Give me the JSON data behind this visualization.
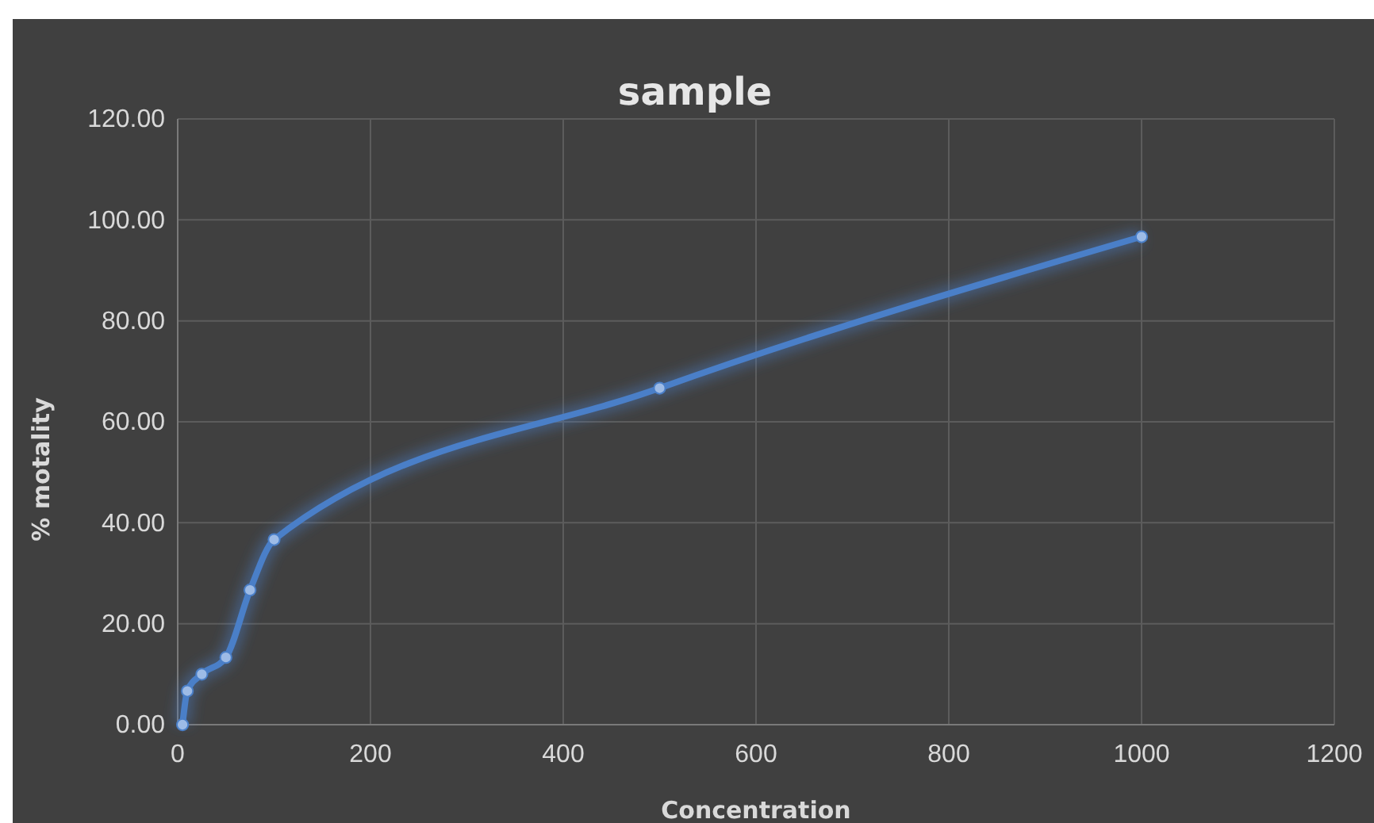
{
  "chart_data": {
    "type": "line",
    "title": "sample",
    "xlabel": "Concentration",
    "ylabel": "% motality",
    "x": [
      5,
      10,
      25,
      50,
      75,
      100,
      500,
      1000
    ],
    "series": [
      {
        "color": "#4a7fc8",
        "values": [
          0,
          6.67,
          10,
          13.33,
          26.67,
          36.67,
          66.67,
          96.67
        ]
      }
    ],
    "xlim": [
      0,
      1200
    ],
    "xticks": [
      0,
      200,
      400,
      600,
      800,
      1000,
      1200
    ],
    "ylim": [
      0,
      120
    ],
    "yticks": [
      {
        "value": 0,
        "label": "0.00"
      },
      {
        "value": 20,
        "label": "20.00"
      },
      {
        "value": 40,
        "label": "40.00"
      },
      {
        "value": 60,
        "label": "60.00"
      },
      {
        "value": 80,
        "label": "80.00"
      },
      {
        "value": 100,
        "label": "100.00"
      },
      {
        "value": 120,
        "label": "120.00"
      }
    ],
    "grid": true,
    "marker": "circle",
    "line_style": "solid"
  }
}
